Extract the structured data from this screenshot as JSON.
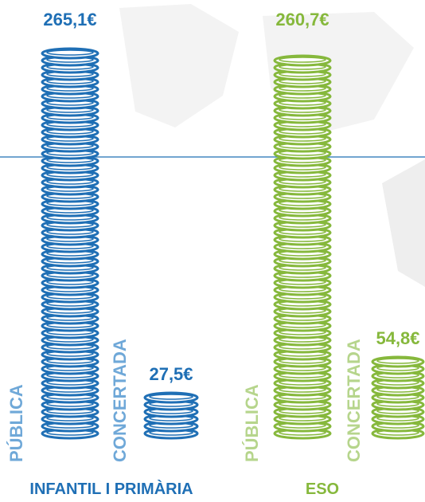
{
  "chart_data": {
    "type": "coin-stack",
    "groups": [
      {
        "name": "INFANTIL I PRIMÀRIA",
        "color": "#1f6fb5",
        "label_color": "#6fa8d8",
        "categories": [
          "PÚBLICA",
          "CONCERTADA"
        ],
        "values": [
          265.1,
          27.5
        ],
        "value_labels": [
          "265,1€",
          "27,5€"
        ]
      },
      {
        "name": "ESO",
        "color": "#86b83c",
        "label_color": "#b6d58c",
        "categories": [
          "PÚBLICA",
          "CONCERTADA"
        ],
        "values": [
          260.7,
          54.8
        ],
        "value_labels": [
          "260,7€",
          "54,8€"
        ]
      }
    ]
  }
}
